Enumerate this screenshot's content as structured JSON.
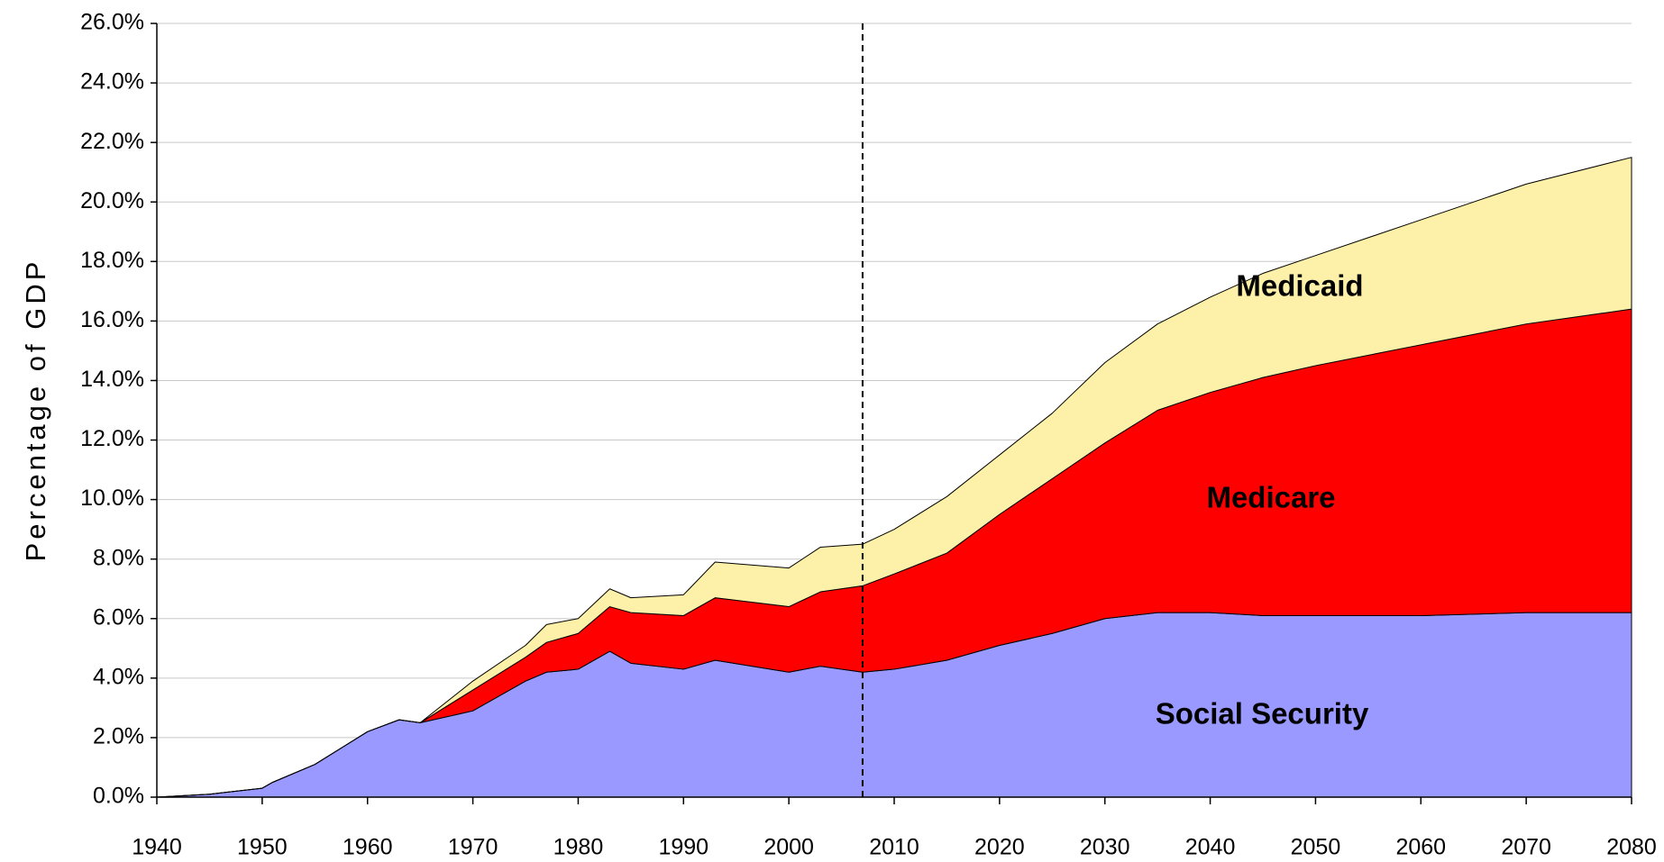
{
  "chart_data": {
    "type": "stacked_area",
    "ylabel": "Percentage of GDP",
    "x": [
      1940,
      1945,
      1950,
      1951,
      1955,
      1960,
      1963,
      1965,
      1970,
      1975,
      1977,
      1980,
      1983,
      1985,
      1990,
      1993,
      2000,
      2003,
      2007,
      2010,
      2015,
      2020,
      2025,
      2030,
      2035,
      2040,
      2045,
      2050,
      2060,
      2070,
      2080
    ],
    "series": [
      {
        "name": "Social Security",
        "color": "#9999ff",
        "values": [
          0,
          0.1,
          0.3,
          0.5,
          1.1,
          2.2,
          2.6,
          2.5,
          2.9,
          3.9,
          4.2,
          4.3,
          4.9,
          4.5,
          4.3,
          4.6,
          4.2,
          4.4,
          4.2,
          4.3,
          4.6,
          5.1,
          5.5,
          6.0,
          6.2,
          6.2,
          6.1,
          6.1,
          6.1,
          6.2,
          6.2
        ]
      },
      {
        "name": "Medicare",
        "color": "#ff0000",
        "values": [
          0,
          0,
          0,
          0,
          0,
          0,
          0,
          0,
          0.7,
          0.8,
          1.0,
          1.2,
          1.5,
          1.7,
          1.8,
          2.1,
          2.2,
          2.5,
          2.9,
          3.2,
          3.6,
          4.4,
          5.2,
          5.9,
          6.8,
          7.4,
          8.0,
          8.4,
          9.1,
          9.7,
          10.2
        ]
      },
      {
        "name": "Medicaid",
        "color": "#fdf0a8",
        "values": [
          0,
          0,
          0,
          0,
          0,
          0,
          0,
          0,
          0.3,
          0.4,
          0.6,
          0.5,
          0.6,
          0.5,
          0.7,
          1.2,
          1.3,
          1.5,
          1.4,
          1.5,
          1.9,
          2.0,
          2.2,
          2.7,
          2.9,
          3.2,
          3.5,
          3.7,
          4.2,
          4.7,
          5.1
        ]
      }
    ],
    "xlim": [
      1940,
      2080
    ],
    "xticks": [
      1940,
      1950,
      1960,
      1970,
      1980,
      1990,
      2000,
      2010,
      2020,
      2030,
      2040,
      2050,
      2060,
      2070,
      2080
    ],
    "ylim": [
      0,
      26
    ],
    "yticks": [
      {
        "value": 0,
        "label": "0.0%"
      },
      {
        "value": 2,
        "label": "2.0%"
      },
      {
        "value": 4,
        "label": "4.0%"
      },
      {
        "value": 6,
        "label": "6.0%"
      },
      {
        "value": 8,
        "label": "8.0%"
      },
      {
        "value": 10,
        "label": "10.0%"
      },
      {
        "value": 12,
        "label": "12.0%"
      },
      {
        "value": 14,
        "label": "14.0%"
      },
      {
        "value": 16,
        "label": "16.0%"
      },
      {
        "value": 18,
        "label": "18.0%"
      },
      {
        "value": 20,
        "label": "20.0%"
      },
      {
        "value": 22,
        "label": "22.0%"
      },
      {
        "value": 24,
        "label": "24.0%"
      },
      {
        "value": 26,
        "label": "26.0%"
      }
    ],
    "grid": true,
    "reference_line_x": 2007
  }
}
